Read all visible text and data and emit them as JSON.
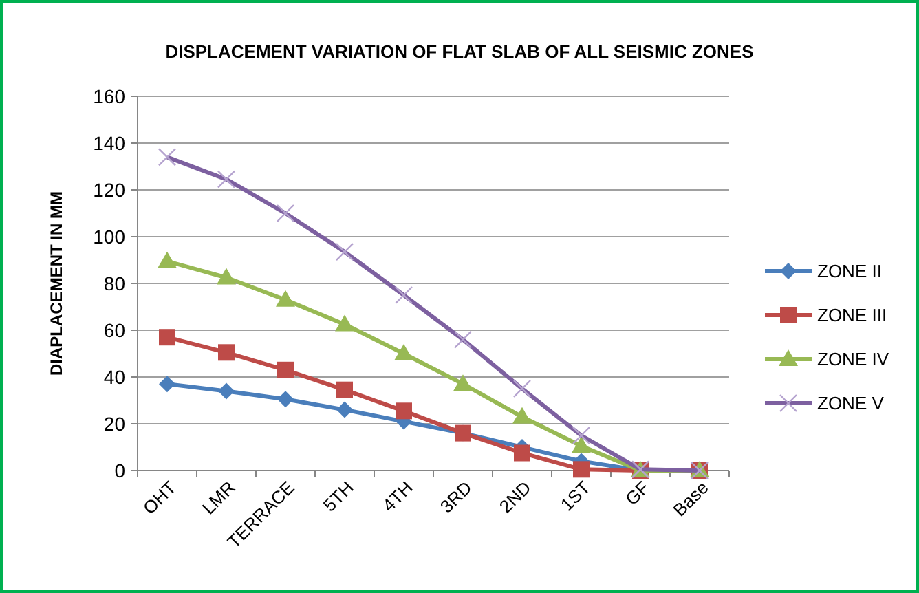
{
  "chart_data": {
    "type": "line",
    "title": "DISPLACEMENT VARIATION OF FLAT SLAB OF ALL SEISMIC ZONES",
    "ylabel": "DIAPLACEMENT IN MM",
    "categories": [
      "OHT",
      "LMR",
      "TERRACE",
      "5TH",
      "4TH",
      "3RD",
      "2ND",
      "1ST",
      "GF",
      "Base"
    ],
    "series": [
      {
        "name": "ZONE II",
        "color": "#4a7ebb",
        "marker": "diamond",
        "values": [
          37,
          34,
          30.5,
          26,
          21,
          16,
          10,
          4,
          0,
          0
        ]
      },
      {
        "name": "ZONE III",
        "color": "#be4b48",
        "marker": "square",
        "values": [
          57,
          50.5,
          43,
          34.5,
          25.5,
          16,
          7.5,
          0.5,
          0,
          0
        ]
      },
      {
        "name": "ZONE IV",
        "color": "#98b954",
        "marker": "triangle",
        "values": [
          89.5,
          82.5,
          73,
          62.5,
          50,
          37,
          23,
          10.5,
          0,
          0
        ]
      },
      {
        "name": "ZONE V",
        "color": "#7d60a0",
        "marker": "cross",
        "values": [
          134,
          124.5,
          110,
          93.5,
          75,
          56,
          35,
          15,
          0.5,
          0
        ]
      }
    ],
    "ylim": [
      0,
      160
    ],
    "yticks": [
      0,
      20,
      40,
      60,
      80,
      100,
      120,
      140,
      160
    ],
    "grid": "y",
    "legend": "right"
  }
}
